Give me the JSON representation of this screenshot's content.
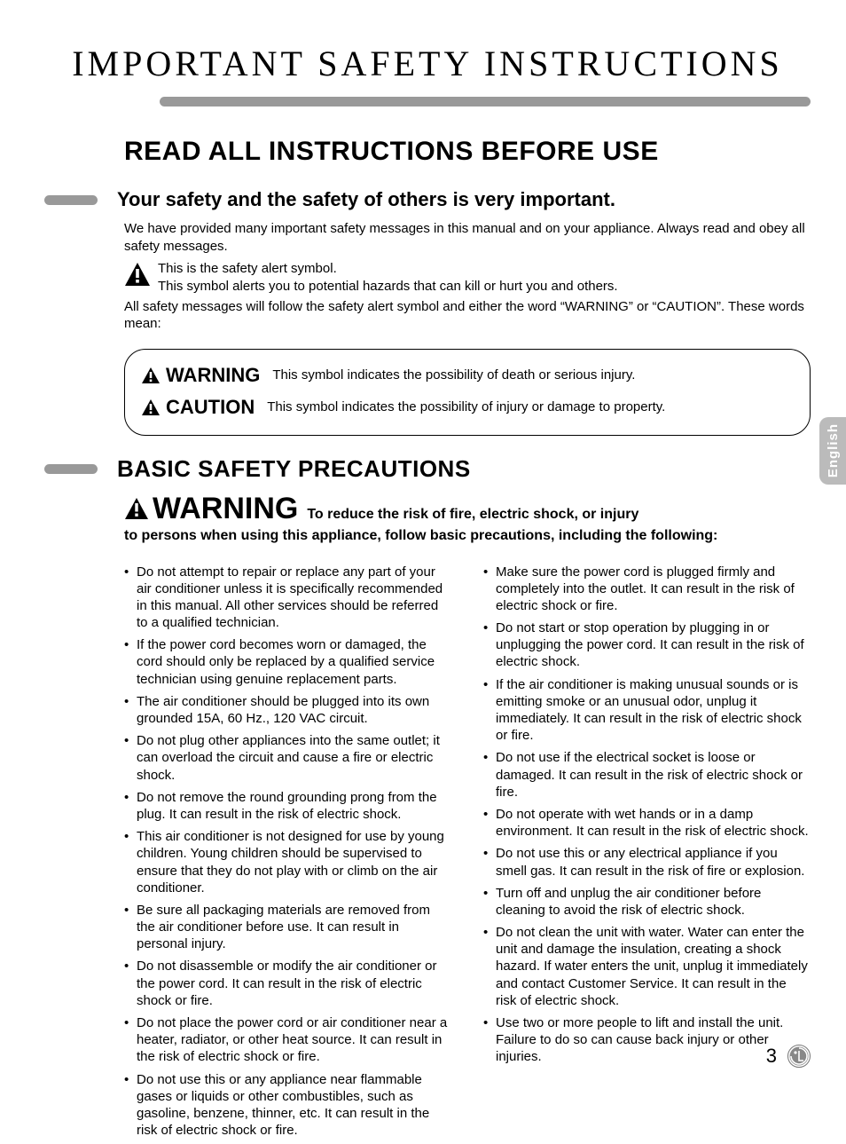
{
  "page": {
    "title": "IMPORTANT SAFETY INSTRUCTIONS",
    "main_heading": "READ ALL INSTRUCTIONS BEFORE USE",
    "sub_heading": "Your safety and the safety of others is very important.",
    "intro": "We have provided many important safety messages in this manual and on your appliance. Always read and obey all safety messages.",
    "alert1": "This is the safety alert symbol.",
    "alert2": "This symbol alerts you to potential hazards that can kill or hurt you and others.",
    "follow": "All safety messages will follow the safety alert symbol and either the word “WARNING” or “CAUTION”. These words mean:",
    "box": {
      "warning_label": "WARNING",
      "warning_desc": "This symbol indicates the possibility of death or serious injury.",
      "caution_label": "CAUTION",
      "caution_desc": "This symbol indicates the possibility of injury or damage to property."
    },
    "section_heading": "BASIC SAFETY PRECAUTIONS",
    "warn": {
      "word": "WARNING",
      "lead": "To reduce the risk of fire, electric shock, or injury",
      "line2": "to persons when using this appliance, follow basic precautions, including the following:"
    },
    "left_items": [
      "Do not attempt to repair or replace any part of your air conditioner unless it is specifically recommended in this manual. All other services should be referred to a qualified technician.",
      "If the power cord becomes worn or damaged, the cord should only be replaced by a qualified service technician using genuine replacement parts.",
      "The air conditioner should be plugged into its own grounded 15A, 60 Hz., 120 VAC circuit.",
      "Do not plug other appliances into the same outlet; it can overload the circuit and cause a fire or electric shock.",
      "Do not remove the round grounding prong from the plug. It can result in the risk of electric shock.",
      "This air conditioner is not designed for use by young children. Young children should be supervised to ensure that they do not play with or climb on the air conditioner.",
      "Be sure all packaging materials are removed from the air conditioner before use. It can result in personal injury.",
      "Do not disassemble or modify the air conditioner or the power cord. It can result in the risk of electric shock or fire.",
      "Do not place the power cord or air conditioner near a heater, radiator, or other heat source. It can result in the risk of electric shock or fire.",
      "Do not use this or any appliance near flammable gases or liquids or other combustibles, such as gasoline, benzene, thinner, etc. It can result in the risk of electric shock or fire."
    ],
    "right_items": [
      "Make sure the power cord is plugged firmly and completely into the outlet. It can result in the risk of electric shock or fire.",
      "Do not start or stop operation by plugging in or unplugging the power cord. It can result in the risk of electric shock.",
      "If the air conditioner is making unusual sounds or is emitting smoke or an unusual odor, unplug it immediately. It can result in the risk of electric shock or fire.",
      "Do not use if the electrical socket is loose or damaged. It can result in the risk of electric shock or fire.",
      "Do not operate with wet hands or in a damp environment. It can result in the risk of electric shock.",
      "Do not use this or any electrical appliance if you smell gas. It can result in the risk of fire or explosion.",
      "Turn off and unplug the air conditioner before cleaning to avoid the risk of electric shock.",
      "Do not clean the unit with water. Water can enter the unit and damage the insulation, creating a shock hazard. If water enters the unit, unplug it immediately and contact Customer Service. It can result in the risk of electric shock.",
      "Use two or more people to lift and install the unit. Failure to do so can cause back injury or other injuries."
    ],
    "side_tab": "English",
    "page_number": "3"
  },
  "style": {
    "page_bg": "#ffffff",
    "rule_color": "#999999",
    "tab_bg": "#bbbbbb",
    "tab_text": "#ffffff",
    "text_color": "#000000",
    "title_fontsize": 40,
    "main_heading_fontsize": 30,
    "sub_heading_fontsize": 22,
    "body_fontsize": 15,
    "warn_word_fontsize": 34,
    "section_heading_fontsize": 26,
    "page_num_fontsize": 22
  }
}
